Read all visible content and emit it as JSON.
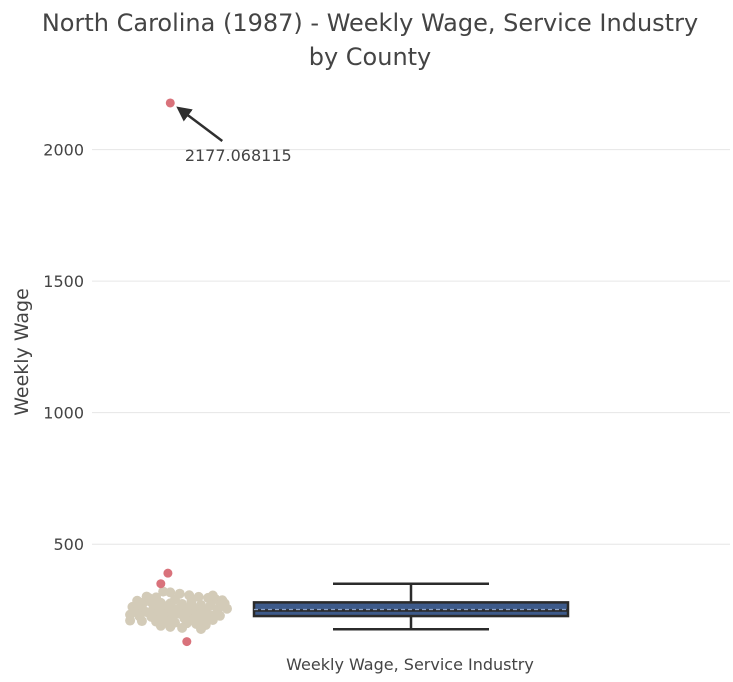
{
  "chart_data": {
    "type": "box",
    "title_lines": [
      "North Carolina (1987) - Weekly Wage, Service Industry",
      "by County"
    ],
    "ylabel": "Weekly Wage",
    "category": "Weekly Wage, Service Industry",
    "ylim": [
      60,
      2310
    ],
    "yticks": [
      500,
      1000,
      1500,
      2000
    ],
    "grid": true,
    "box": {
      "min": 177,
      "q1": 227,
      "median": 248,
      "mean": 252,
      "q3": 279,
      "max": 350,
      "fill": "#3d5a8a",
      "line": "#2b2b2b"
    },
    "point_color": "#d3cbb8",
    "outlier_color": "#d9727b",
    "points": [
      {
        "x": -0.12,
        "y": 301
      },
      {
        "x": -0.08,
        "y": 298
      },
      {
        "x": -0.05,
        "y": 320
      },
      {
        "x": -0.02,
        "y": 317
      },
      {
        "x": 0.02,
        "y": 312
      },
      {
        "x": 0.06,
        "y": 306
      },
      {
        "x": 0.1,
        "y": 300
      },
      {
        "x": 0.14,
        "y": 296
      },
      {
        "x": 0.17,
        "y": 292
      },
      {
        "x": 0.2,
        "y": 287
      },
      {
        "x": -0.16,
        "y": 285
      },
      {
        "x": -0.13,
        "y": 281
      },
      {
        "x": -0.1,
        "y": 279
      },
      {
        "x": -0.06,
        "y": 277
      },
      {
        "x": -0.02,
        "y": 275
      },
      {
        "x": 0.03,
        "y": 273
      },
      {
        "x": 0.07,
        "y": 271
      },
      {
        "x": 0.11,
        "y": 269
      },
      {
        "x": 0.15,
        "y": 267
      },
      {
        "x": 0.19,
        "y": 265
      },
      {
        "x": -0.18,
        "y": 262
      },
      {
        "x": -0.14,
        "y": 260
      },
      {
        "x": -0.09,
        "y": 258
      },
      {
        "x": -0.04,
        "y": 256
      },
      {
        "x": 0.01,
        "y": 254
      },
      {
        "x": 0.05,
        "y": 252
      },
      {
        "x": 0.09,
        "y": 250
      },
      {
        "x": 0.13,
        "y": 248
      },
      {
        "x": 0.18,
        "y": 246
      },
      {
        "x": -0.17,
        "y": 244
      },
      {
        "x": -0.12,
        "y": 242
      },
      {
        "x": -0.07,
        "y": 240
      },
      {
        "x": -0.03,
        "y": 238
      },
      {
        "x": 0.02,
        "y": 236
      },
      {
        "x": 0.06,
        "y": 234
      },
      {
        "x": 0.1,
        "y": 232
      },
      {
        "x": 0.15,
        "y": 230
      },
      {
        "x": 0.19,
        "y": 228
      },
      {
        "x": -0.15,
        "y": 226
      },
      {
        "x": -0.1,
        "y": 224
      },
      {
        "x": -0.05,
        "y": 222
      },
      {
        "x": -0.01,
        "y": 220
      },
      {
        "x": 0.04,
        "y": 218
      },
      {
        "x": 0.08,
        "y": 216
      },
      {
        "x": 0.12,
        "y": 214
      },
      {
        "x": 0.16,
        "y": 212
      },
      {
        "x": -0.19,
        "y": 210
      },
      {
        "x": -0.14,
        "y": 208
      },
      {
        "x": -0.08,
        "y": 206
      },
      {
        "x": -0.04,
        "y": 204
      },
      {
        "x": 0.0,
        "y": 202
      },
      {
        "x": 0.05,
        "y": 200
      },
      {
        "x": 0.09,
        "y": 197
      },
      {
        "x": 0.13,
        "y": 193
      },
      {
        "x": -0.06,
        "y": 190
      },
      {
        "x": -0.02,
        "y": 186
      },
      {
        "x": 0.03,
        "y": 182
      },
      {
        "x": 0.11,
        "y": 178
      },
      {
        "x": -0.16,
        "y": 270
      },
      {
        "x": 0.21,
        "y": 275
      },
      {
        "x": -0.11,
        "y": 295
      },
      {
        "x": 0.0,
        "y": 290
      },
      {
        "x": 0.16,
        "y": 305
      },
      {
        "x": -0.19,
        "y": 232
      },
      {
        "x": 0.22,
        "y": 255
      },
      {
        "x": -0.07,
        "y": 265
      },
      {
        "x": 0.07,
        "y": 285
      },
      {
        "x": -0.01,
        "y": 246
      }
    ],
    "outliers": [
      {
        "x": -0.02,
        "y": 2177.068115
      },
      {
        "x": -0.03,
        "y": 390
      },
      {
        "x": -0.06,
        "y": 350
      },
      {
        "x": 0.05,
        "y": 130
      }
    ],
    "annotation": {
      "text": "2177.068115",
      "y": 2177.068115
    }
  }
}
